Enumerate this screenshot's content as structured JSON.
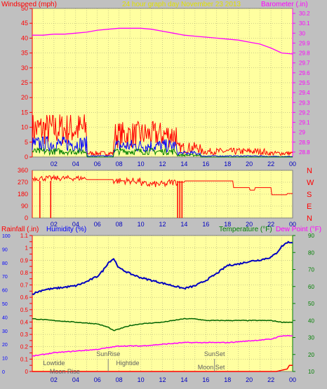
{
  "header": {
    "left_title": "Windspeed (mph)",
    "center_title": "24 hour graph day   November 23 2013",
    "right_title": "Barometer (.in)"
  },
  "colors": {
    "plot_bg": "#ffffa0",
    "frame_bg": "#c0c0c0",
    "wind_gust": "#ff0000",
    "wind_avg": "#0000ff",
    "wind_low": "#008000",
    "barometer": "#ff00ff",
    "direction": "#ff0000",
    "rainfall": "#ff0000",
    "humidity": "#0000c0",
    "temperature": "#006400",
    "dewpoint": "#ff00ff",
    "label_red": "#ff0000",
    "label_blue": "#0000ff",
    "label_green": "#008000",
    "label_magenta": "#ff00ff",
    "label_yellow": "#e0e000",
    "label_gray": "#606060"
  },
  "x_ticks": [
    "02",
    "04",
    "06",
    "08",
    "10",
    "12",
    "14",
    "16",
    "18",
    "20",
    "22",
    "00"
  ],
  "chart_data": [
    {
      "type": "line",
      "name": "wind-barometer",
      "xlabel": "",
      "left_axis": {
        "label": "Windspeed (mph)",
        "ylim": [
          0,
          50
        ],
        "ticks": [
          0,
          5,
          10,
          15,
          20,
          25,
          30,
          35,
          40,
          45,
          50
        ]
      },
      "right_axis": {
        "label": "Barometer (.in)",
        "ylim": [
          28.75,
          30.25
        ],
        "ticks": [
          "28.8",
          "28.9",
          "29",
          "29.1",
          "29.2",
          "29.3",
          "29.4",
          "29.5",
          "29.6",
          "29.7",
          "29.8",
          "29.9",
          "30",
          "30.1",
          "30.2"
        ]
      },
      "wind_segments": [
        {
          "from": 0.0,
          "to": 5.0,
          "gust_max": 15,
          "avg_max": 7,
          "low_max": 3
        },
        {
          "from": 5.0,
          "to": 7.5,
          "gust_max": 2,
          "avg_max": 0.5,
          "low_max": 0
        },
        {
          "from": 7.5,
          "to": 13.3,
          "gust_max": 12,
          "avg_max": 6,
          "low_max": 3
        },
        {
          "from": 13.3,
          "to": 15.5,
          "gust_max": 5,
          "avg_max": 2,
          "low_max": 1
        },
        {
          "from": 15.5,
          "to": 21.5,
          "gust_max": 3,
          "avg_max": 0.5,
          "low_max": 0
        },
        {
          "from": 21.5,
          "to": 24.0,
          "gust_max": 2,
          "avg_max": 0.3,
          "low_max": 0
        }
      ],
      "barometer": {
        "x": [
          0,
          1,
          2,
          3,
          4,
          5,
          6,
          7,
          8,
          9,
          10,
          11,
          12,
          13,
          14,
          15,
          16,
          17,
          18,
          19,
          20,
          21,
          22,
          23,
          24
        ],
        "y": [
          29.98,
          29.98,
          29.99,
          29.99,
          30.0,
          30.01,
          30.03,
          30.04,
          30.05,
          30.05,
          30.05,
          30.04,
          30.02,
          30.0,
          29.98,
          29.97,
          29.96,
          29.95,
          29.94,
          29.93,
          29.91,
          29.89,
          29.85,
          29.8,
          29.79
        ]
      }
    },
    {
      "type": "line",
      "name": "wind-direction",
      "xlabel": "",
      "left_axis": {
        "ylim": [
          0,
          360
        ],
        "ticks": [
          0,
          90,
          180,
          270,
          360
        ]
      },
      "right_axis": {
        "labels": [
          "N",
          "W",
          "S",
          "E",
          "N"
        ]
      },
      "direction": {
        "x": [
          0,
          5,
          7.5,
          10,
          12.5,
          14,
          16,
          18,
          18.5,
          20,
          20.5,
          22,
          23.5,
          24
        ],
        "y": [
          300,
          290,
          280,
          255,
          270,
          280,
          280,
          280,
          230,
          210,
          230,
          175,
          185,
          180
        ]
      }
    },
    {
      "type": "line",
      "name": "rain-humidity-temperature",
      "xlabel": "",
      "left_axis": {
        "label": "Rainfall (.in)",
        "ylim": [
          0,
          1.1
        ],
        "ticks": [
          "0",
          "0.05",
          "0.1",
          "0.15",
          "0.2",
          "0.25",
          "0.3",
          "0.35",
          "0.4",
          "0.45",
          "0.5",
          "0.55",
          "0.6",
          "0.65",
          "0.7",
          "0.75",
          "0.8",
          "0.85",
          "0.9",
          "0.95",
          "1",
          "1.05",
          "1.1"
        ]
      },
      "humidity_axis": {
        "label": "Humidity (%)",
        "ylim": [
          0,
          100
        ],
        "ticks": [
          0,
          10,
          20,
          30,
          40,
          50,
          60,
          70,
          80,
          90,
          100
        ]
      },
      "right_axis": {
        "label": "Temperature (°F)",
        "second_label": "Dew Point (°F)",
        "ylim": [
          10,
          90
        ],
        "ticks": [
          10,
          20,
          30,
          40,
          50,
          60,
          70,
          80,
          90
        ]
      },
      "series": [
        {
          "name": "Humidity (%)",
          "axis": "humidity",
          "x": [
            0,
            1,
            2,
            3,
            4,
            5,
            6,
            6.5,
            7,
            7.5,
            8,
            9,
            10,
            11,
            12,
            13,
            14,
            15,
            16,
            17,
            18,
            19,
            20,
            21,
            22,
            22.5,
            23,
            23.5,
            24
          ],
          "values": [
            57,
            60,
            61,
            62,
            63,
            66,
            70,
            74,
            80,
            83,
            76,
            72,
            69,
            67,
            65,
            63,
            61,
            63,
            67,
            72,
            78,
            79,
            81,
            82,
            84,
            87,
            92,
            95,
            95
          ]
        },
        {
          "name": "Temperature (°F)",
          "axis": "right",
          "x": [
            0,
            2,
            4,
            6,
            7,
            7.5,
            8,
            9,
            10,
            12,
            13,
            14,
            15,
            16,
            18,
            20,
            22,
            23,
            24
          ],
          "values": [
            41,
            40,
            39,
            38,
            36,
            34,
            35,
            37,
            38,
            39,
            40,
            41,
            41,
            40,
            40,
            40,
            40,
            39,
            39
          ]
        },
        {
          "name": "Dew Point (°F)",
          "axis": "right",
          "x": [
            0,
            2,
            4,
            6,
            7,
            8,
            10,
            12,
            14,
            16,
            18,
            20,
            22,
            23,
            24
          ],
          "values": [
            19,
            21,
            22,
            23,
            24,
            25,
            25,
            26,
            27,
            27,
            27,
            28,
            29,
            31,
            31
          ]
        },
        {
          "name": "Rainfall (.in)",
          "axis": "left",
          "x": [
            0,
            22.5,
            23,
            23.5,
            23.7,
            24
          ],
          "values": [
            0,
            0,
            0.01,
            0.02,
            0.05,
            0.05
          ]
        }
      ],
      "annotations": [
        {
          "text": "Lowtide",
          "x": 2
        },
        {
          "text": "Moon Rise",
          "x": 3.0
        },
        {
          "text": "SunRise",
          "x": 7.0
        },
        {
          "text": "Hightide",
          "x": 8.8
        },
        {
          "text": "SunSet",
          "x": 16.8
        },
        {
          "text": "Moon Set",
          "x": 16.5
        }
      ]
    }
  ]
}
